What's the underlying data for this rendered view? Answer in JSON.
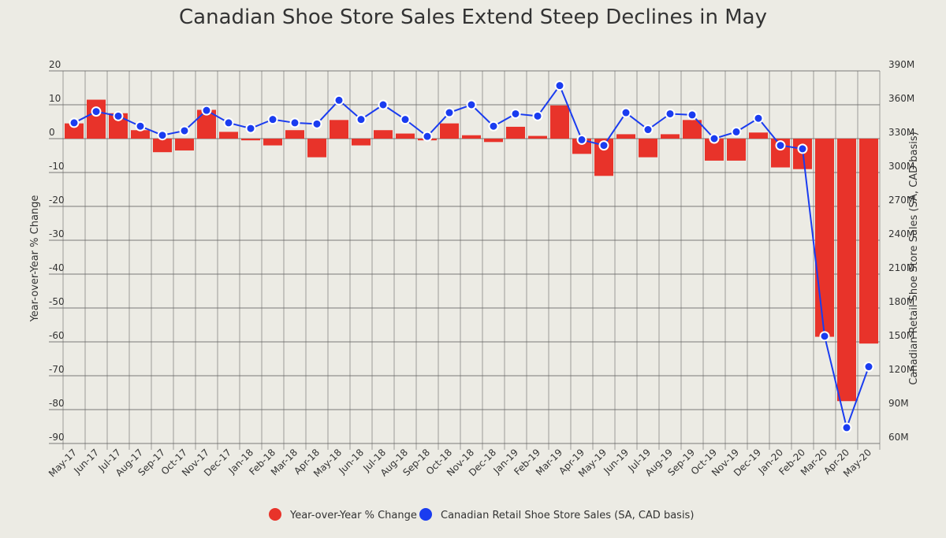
{
  "chart_data": {
    "type": "bar",
    "title": "Canadian Shoe Store Sales Extend Steep Declines in May",
    "categories": [
      "May-17",
      "Jun-17",
      "Jul-17",
      "Aug-17",
      "Sep-17",
      "Oct-17",
      "Nov-17",
      "Dec-17",
      "Jan-18",
      "Feb-18",
      "Mar-18",
      "Apr-18",
      "May-18",
      "Jun-18",
      "Jul-18",
      "Aug-18",
      "Sep-18",
      "Oct-18",
      "Nov-18",
      "Dec-18",
      "Jan-19",
      "Feb-19",
      "Mar-19",
      "Apr-19",
      "May-19",
      "Jun-19",
      "Jul-19",
      "Aug-19",
      "Sep-19",
      "Oct-19",
      "Nov-19",
      "Dec-19",
      "Jan-20",
      "Feb-20",
      "Mar-20",
      "Apr-20",
      "May-20"
    ],
    "series": [
      {
        "name": "Year-over-Year % Change",
        "kind": "bar",
        "axis": "left",
        "color": "#e8332a",
        "values": [
          4.5,
          11.5,
          7.5,
          2.5,
          -4,
          -3.5,
          8.5,
          2,
          -0.5,
          -2,
          2.5,
          -5.5,
          5.5,
          -2,
          2.5,
          1.5,
          -0.5,
          4.5,
          1,
          -1,
          3.5,
          0.8,
          9.8,
          -4.5,
          -11,
          1.3,
          -5.5,
          1.3,
          5.5,
          -6.5,
          -6.5,
          1.8,
          -8.5,
          -9,
          -58.5,
          -77.5,
          -60.5
        ]
      },
      {
        "name": "Canadian Retail Shoe Store Sales (SA, CAD basis)",
        "kind": "line",
        "axis": "right",
        "color": "#1a3cf0",
        "values": [
          344,
          354,
          350,
          341,
          333,
          337,
          355,
          344,
          339,
          347,
          344,
          343,
          364,
          347,
          360,
          347,
          332,
          353,
          360,
          341,
          352,
          350,
          377,
          329,
          324,
          353,
          338,
          352,
          351,
          330,
          336,
          348,
          324,
          321,
          155,
          74,
          128
        ]
      }
    ],
    "left_axis": {
      "label": "Year-over-Year % Change",
      "range": [
        -90,
        20
      ],
      "ticks": [
        "20",
        "10",
        "0",
        "-10",
        "-20",
        "-30",
        "-40",
        "-50",
        "-60",
        "-70",
        "-80",
        "-90"
      ]
    },
    "right_axis": {
      "label": "Canadian Retail Shoe Store Sales (SA, CAD basis)",
      "range": [
        60,
        390
      ],
      "ticks": [
        "390M",
        "360M",
        "330M",
        "300M",
        "270M",
        "240M",
        "210M",
        "180M",
        "150M",
        "120M",
        "90M",
        "60M"
      ]
    },
    "grid": true,
    "legend_position": "bottom-center",
    "background": "#ecebe4"
  }
}
